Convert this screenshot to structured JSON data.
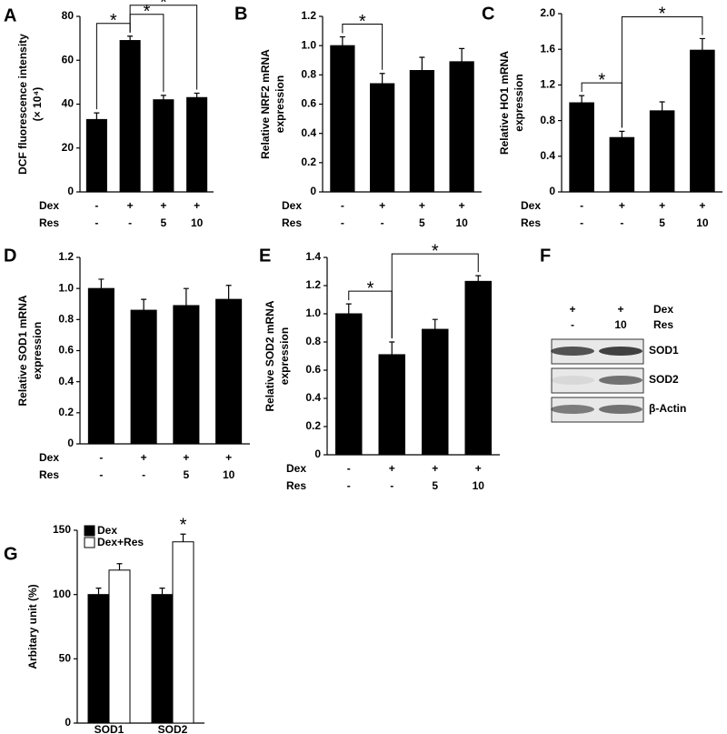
{
  "chart_data": [
    {
      "type": "bar",
      "label": "A",
      "ylabel": [
        "DCF fluorescence intensity",
        "(× 10⁴)"
      ],
      "color": "#000000",
      "values": [
        33,
        69,
        42,
        43
      ],
      "errors": [
        3,
        2,
        2,
        2
      ],
      "ylim": [
        0,
        80
      ],
      "yticks": [
        0,
        20,
        40,
        60,
        80
      ],
      "conditions": [
        {
          "name": "Dex",
          "values": [
            "-",
            "+",
            "+",
            "+"
          ]
        },
        {
          "name": "Res",
          "values": [
            "-",
            "-",
            "5",
            "10"
          ]
        }
      ],
      "significance": [
        {
          "text": "*",
          "pair": [
            0,
            1
          ]
        },
        {
          "text": "*",
          "pair": [
            1,
            2
          ]
        },
        {
          "text": "*",
          "pair": [
            1,
            3
          ]
        }
      ]
    },
    {
      "type": "bar",
      "label": "B",
      "ylabel": [
        "Relative NRF2 mRNA",
        "expression"
      ],
      "color": "#000000",
      "values": [
        1.0,
        0.74,
        0.83,
        0.89
      ],
      "errors": [
        0.06,
        0.07,
        0.09,
        0.09
      ],
      "ylim": [
        0,
        1.2
      ],
      "yticks": [
        0,
        0.2,
        0.4,
        0.6,
        0.8,
        {
          "value": 1,
          "label": "1.0"
        },
        1.2
      ],
      "conditions": [
        {
          "name": "Dex",
          "values": [
            "-",
            "+",
            "+",
            "+"
          ]
        },
        {
          "name": "Res",
          "values": [
            "-",
            "-",
            "5",
            "10"
          ]
        }
      ],
      "significance": [
        {
          "text": "*",
          "pair": [
            0,
            1
          ]
        }
      ]
    },
    {
      "type": "bar",
      "label": "C",
      "ylabel": [
        "Relative HO1 mRNA",
        "expression"
      ],
      "color": "#000000",
      "values": [
        1.0,
        0.61,
        0.91,
        1.59
      ],
      "errors": [
        0.08,
        0.07,
        0.1,
        0.13
      ],
      "ylim": [
        0,
        2
      ],
      "yticks": [
        0,
        0.4,
        0.8,
        1.2,
        1.6,
        {
          "value": 2,
          "label": "2.0"
        }
      ],
      "conditions": [
        {
          "name": "Dex",
          "values": [
            "-",
            "+",
            "+",
            "+"
          ]
        },
        {
          "name": "Res",
          "values": [
            "-",
            "-",
            "5",
            "10"
          ]
        }
      ],
      "significance": [
        {
          "text": "*",
          "pair": [
            0,
            1
          ]
        },
        {
          "text": "*",
          "pair": [
            1,
            3
          ]
        }
      ]
    },
    {
      "type": "bar",
      "label": "D",
      "ylabel": [
        "Relative SOD1 mRNA",
        "expression"
      ],
      "color": "#000000",
      "values": [
        1.0,
        0.86,
        0.89,
        0.93
      ],
      "errors": [
        0.06,
        0.07,
        0.11,
        0.09
      ],
      "ylim": [
        0,
        1.2
      ],
      "yticks": [
        0,
        0.2,
        0.4,
        0.6,
        0.8,
        {
          "value": 1,
          "label": "1.0"
        },
        1.2
      ],
      "conditions": [
        {
          "name": "Dex",
          "values": [
            "-",
            "+",
            "+",
            "+"
          ]
        },
        {
          "name": "Res",
          "values": [
            "-",
            "-",
            "5",
            "10"
          ]
        }
      ],
      "significance": []
    },
    {
      "type": "bar",
      "label": "E",
      "ylabel": [
        "Relative SOD2 mRNA",
        "expression"
      ],
      "color": "#000000",
      "values": [
        1.0,
        0.71,
        0.89,
        1.23
      ],
      "errors": [
        0.07,
        0.09,
        0.07,
        0.04
      ],
      "ylim": [
        0,
        1.4
      ],
      "yticks": [
        0,
        0.2,
        0.4,
        0.6,
        0.8,
        {
          "value": 1,
          "label": "1.0"
        },
        1.2,
        1.4
      ],
      "conditions": [
        {
          "name": "Dex",
          "values": [
            "-",
            "+",
            "+",
            "+"
          ]
        },
        {
          "name": "Res",
          "values": [
            "-",
            "-",
            "5",
            "10"
          ]
        }
      ],
      "significance": [
        {
          "text": "*",
          "pair": [
            0,
            1
          ]
        },
        {
          "text": "*",
          "pair": [
            1,
            3
          ]
        }
      ]
    },
    {
      "type": "blot",
      "label": "F",
      "conditions": [
        {
          "name": "Dex",
          "values": [
            "+",
            "+"
          ]
        },
        {
          "name": "Res",
          "values": [
            "-",
            "10"
          ]
        }
      ],
      "bands": [
        "SOD1",
        "SOD2",
        "β-Actin"
      ]
    },
    {
      "type": "grouped_bar",
      "label": "G",
      "ylabel": [
        "Arbitary unit (%)"
      ],
      "categories": [
        "SOD1",
        "SOD2"
      ],
      "series": [
        {
          "name": "Dex",
          "color": "#000000",
          "values": [
            100,
            100
          ],
          "errors": [
            5,
            5
          ]
        },
        {
          "name": "Dex+Res",
          "color": "#ffffff",
          "values": [
            119,
            141
          ],
          "errors": [
            5,
            6
          ]
        }
      ],
      "ylim": [
        0,
        150
      ],
      "yticks": [
        0,
        50,
        100,
        150
      ],
      "significance": [
        {
          "text": "*",
          "series": 1,
          "category": 1
        }
      ]
    }
  ]
}
